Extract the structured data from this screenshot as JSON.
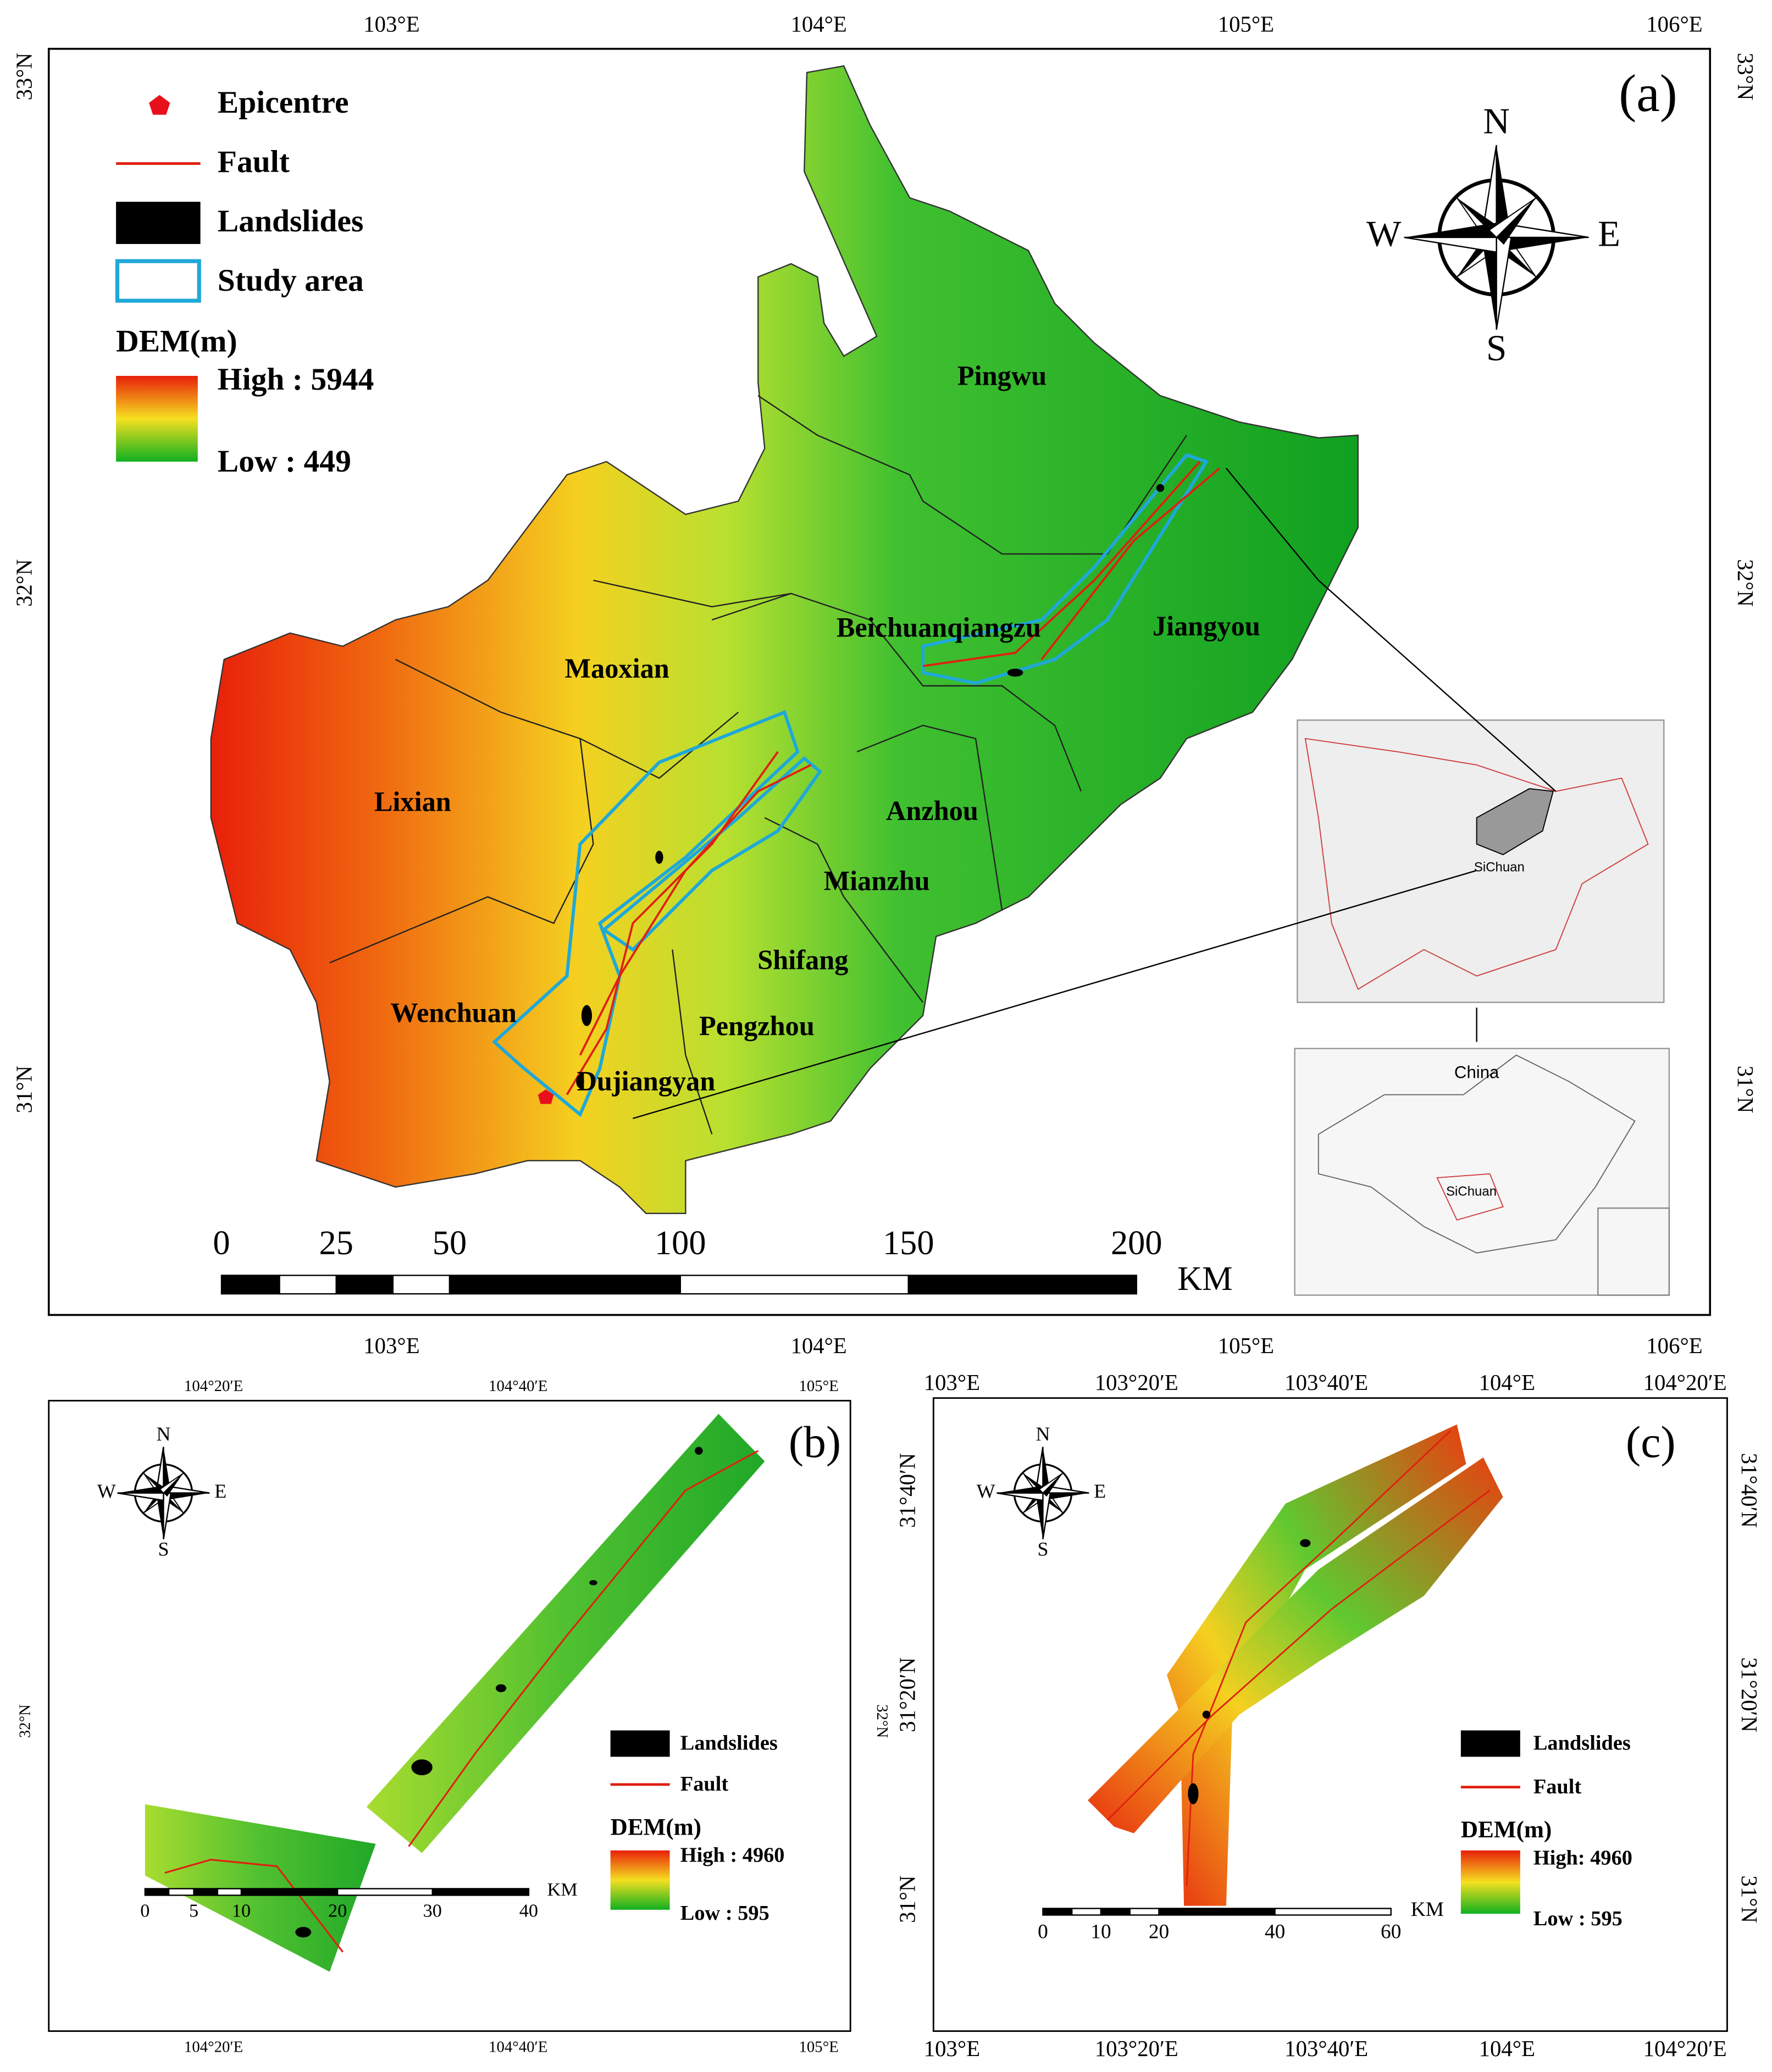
{
  "panel_a": {
    "label": "(a)",
    "top_ticks": [
      "103°E",
      "104°E",
      "105°E",
      "106°E"
    ],
    "bottom_ticks": [
      "103°E",
      "104°E",
      "105°E",
      "106°E"
    ],
    "left_ticks": [
      "33°N",
      "32°N",
      "31°N"
    ],
    "right_ticks": [
      "33°N",
      "32°N",
      "31°N"
    ],
    "legend": {
      "epicentre": "Epicentre",
      "fault": "Fault",
      "landslides": "Landslides",
      "study_area": "Study area",
      "dem_title": "DEM(m)",
      "high": "High : 5944",
      "low": "Low : 449"
    },
    "compass": {
      "north": "N",
      "south": "S",
      "west": "W",
      "east": "E"
    },
    "regions": [
      "Pingwu",
      "Beichuanqiangzu",
      "Jiangyou",
      "Maoxian",
      "Lixian",
      "Anzhou",
      "Mianzhu",
      "Shifang",
      "Wenchuan",
      "Pengzhou",
      "Dujiangyan"
    ],
    "insets": {
      "sichuan_map": "SiChuan",
      "china_map_title": "China",
      "china_map_sichuan": "SiChuan"
    },
    "scale": {
      "ticks": [
        "0",
        "25",
        "50",
        "100",
        "150",
        "200"
      ],
      "unit": "KM"
    }
  },
  "panel_b": {
    "label": "(b)",
    "top_ticks": [
      "104°20′E",
      "104°40′E",
      "105°E"
    ],
    "bottom_ticks": [
      "104°20′E",
      "104°40′E",
      "105°E"
    ],
    "left_ticks": [
      "32°N"
    ],
    "right_ticks": [
      "32°N"
    ],
    "legend": {
      "landslides": "Landslides",
      "fault": "Fault",
      "dem_title": "DEM(m)",
      "high": "High : 4960",
      "low": "Low : 595"
    },
    "compass": {
      "north": "N",
      "south": "S",
      "west": "W",
      "east": "E"
    },
    "scale": {
      "ticks": [
        "0",
        "5",
        "10",
        "20",
        "30",
        "40"
      ],
      "unit": "KM"
    }
  },
  "panel_c": {
    "label": "(c)",
    "top_ticks": [
      "103°E",
      "103°20′E",
      "103°40′E",
      "104°E",
      "104°20′E"
    ],
    "bottom_ticks": [
      "103°E",
      "103°20′E",
      "103°40′E",
      "104°E",
      "104°20′E"
    ],
    "left_ticks": [
      "31°40′N",
      "31°20′N",
      "31°N"
    ],
    "right_ticks": [
      "31°40′N",
      "31°20′N",
      "31°N"
    ],
    "legend": {
      "landslides": "Landslides",
      "fault": "Fault",
      "dem_title": "DEM(m)",
      "high": "High: 4960",
      "low": "Low : 595"
    },
    "compass": {
      "north": "N",
      "south": "S",
      "west": "W",
      "east": "E"
    },
    "scale": {
      "ticks": [
        "0",
        "10",
        "20",
        "40",
        "60"
      ],
      "unit": "KM"
    }
  }
}
